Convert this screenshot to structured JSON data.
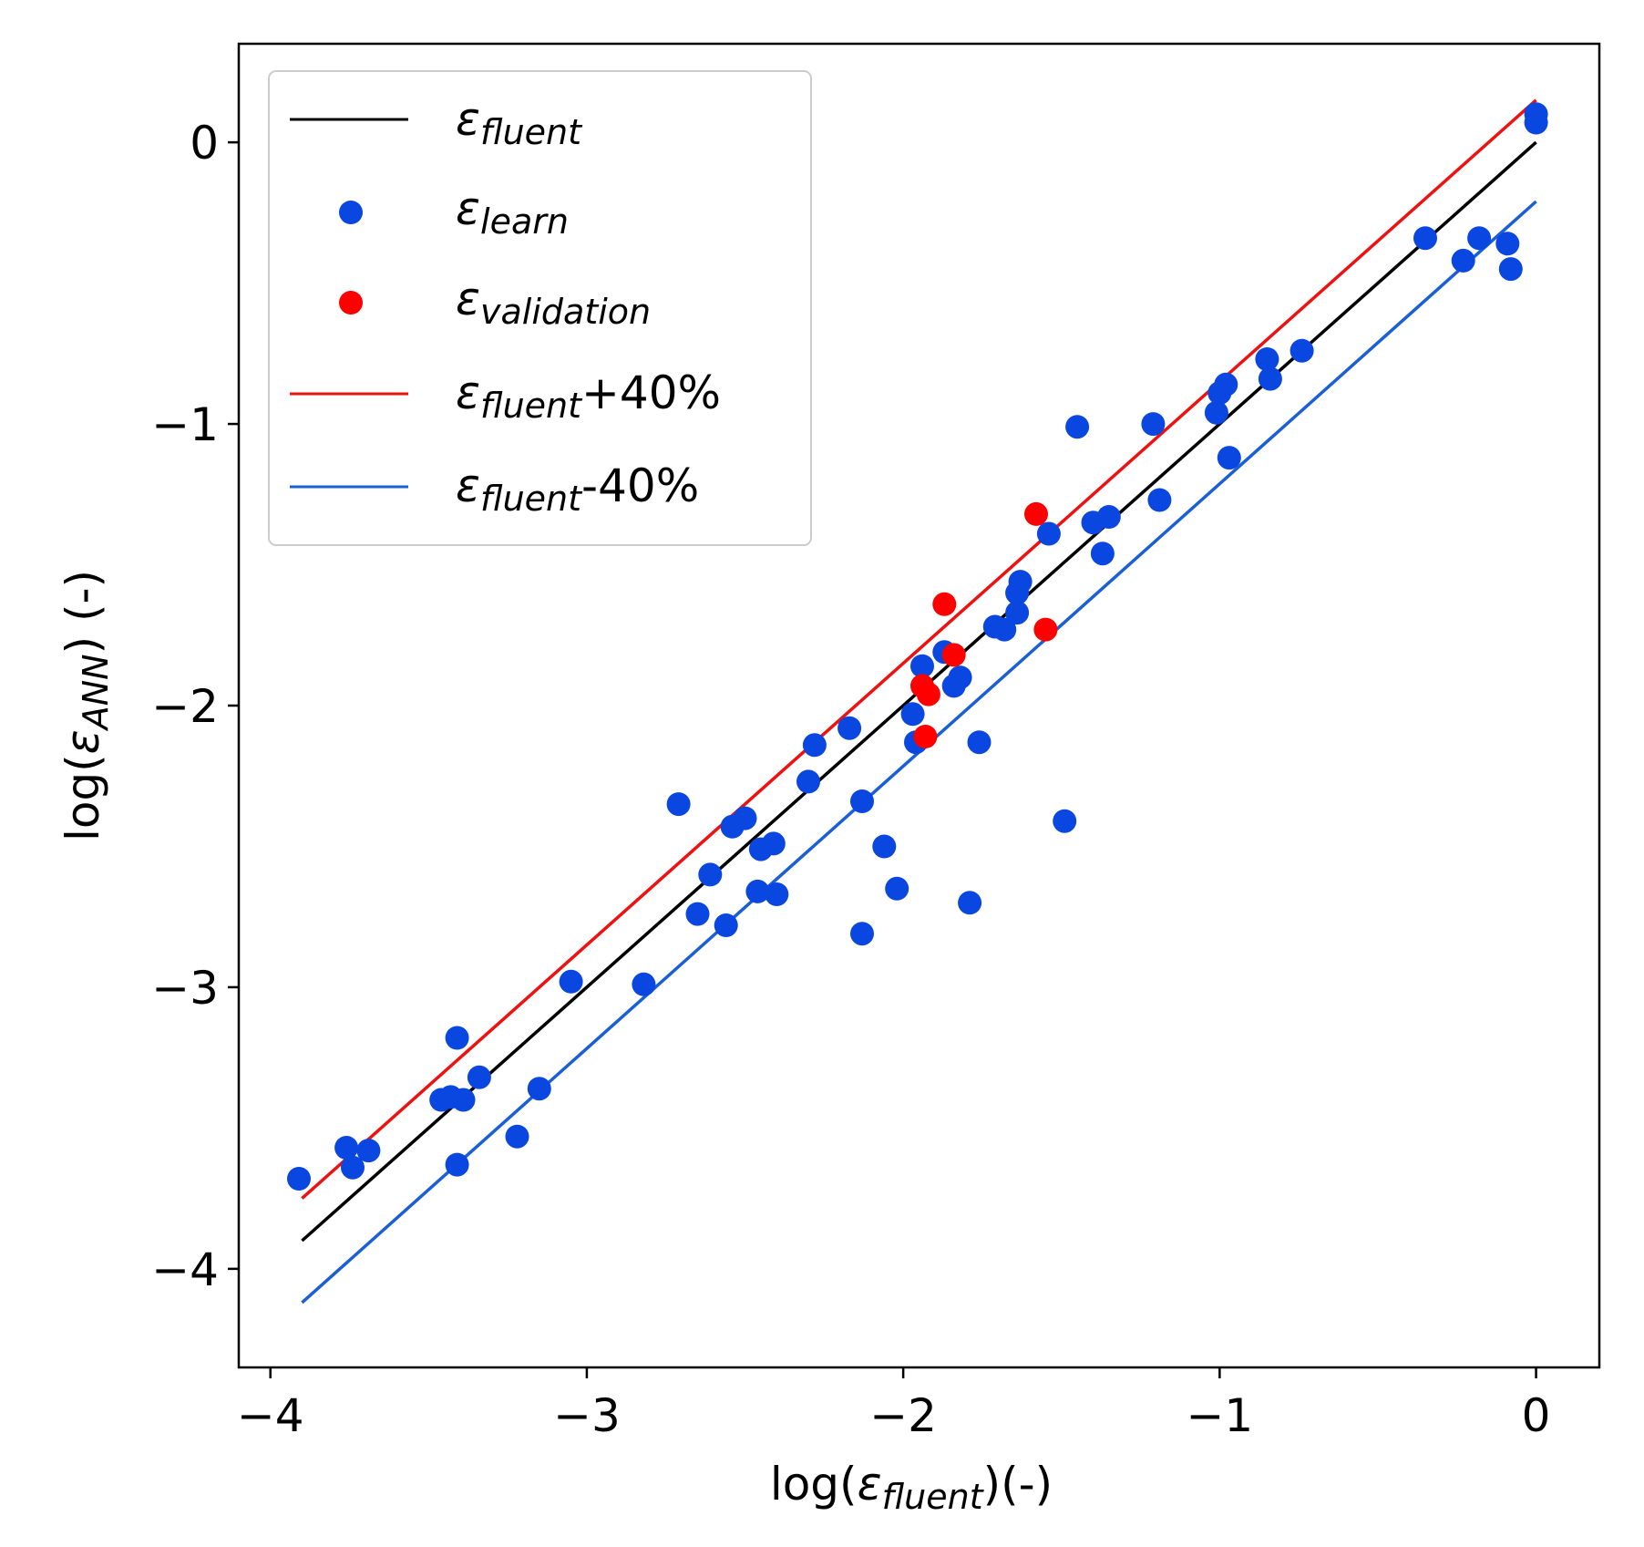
{
  "chart_data": {
    "type": "scatter",
    "title": "",
    "xlabel": "log(εfluent)(-)",
    "xlabel_parts": {
      "prefix": "log(",
      "symbol": "ε",
      "sub": "fluent",
      "suffix": ")(-)"
    },
    "ylabel": "log(εANN) (-)",
    "ylabel_parts": {
      "prefix": "log(",
      "symbol": "ε",
      "sub": "ANN",
      "suffix": ") (-)"
    },
    "xlim": [
      -4.1,
      0.2
    ],
    "ylim": [
      -4.35,
      0.35
    ],
    "xticks": [
      -4,
      -3,
      -2,
      -1,
      0
    ],
    "yticks": [
      -4,
      -3,
      -2,
      -1,
      0
    ],
    "tick_labels": {
      "x": [
        "−4",
        "−3",
        "−2",
        "−1",
        "0"
      ],
      "y": [
        "−4",
        "−3",
        "−2",
        "−1",
        "0"
      ]
    },
    "legend_position": "upper-left",
    "lines": [
      {
        "id": "fluent",
        "symbol": "ε",
        "sub": "fluent",
        "suffix": "",
        "color": "#000000",
        "x": [
          -3.9,
          0.0
        ],
        "y": [
          -3.9,
          0.0
        ]
      },
      {
        "id": "plus40",
        "symbol": "ε",
        "sub": "fluent",
        "suffix": "+40%",
        "color": "#ee1111",
        "x": [
          -3.9,
          0.0
        ],
        "y": [
          -3.75,
          0.15
        ]
      },
      {
        "id": "minus40",
        "symbol": "ε",
        "sub": "fluent",
        "suffix": "-40%",
        "color": "#1a5fd6",
        "x": [
          -3.9,
          0.0
        ],
        "y": [
          -4.12,
          -0.21
        ]
      }
    ],
    "series": [
      {
        "id": "learn",
        "symbol": "ε",
        "sub": "learn",
        "color": "#0a46e0",
        "points": [
          [
            -3.91,
            -3.68
          ],
          [
            -3.76,
            -3.57
          ],
          [
            -3.74,
            -3.64
          ],
          [
            -3.69,
            -3.58
          ],
          [
            -3.46,
            -3.4
          ],
          [
            -3.43,
            -3.39
          ],
          [
            -3.41,
            -3.18
          ],
          [
            -3.41,
            -3.63
          ],
          [
            -3.39,
            -3.4
          ],
          [
            -3.34,
            -3.32
          ],
          [
            -3.22,
            -3.53
          ],
          [
            -3.15,
            -3.36
          ],
          [
            -3.05,
            -2.98
          ],
          [
            -2.82,
            -2.99
          ],
          [
            -2.71,
            -2.35
          ],
          [
            -2.65,
            -2.74
          ],
          [
            -2.61,
            -2.6
          ],
          [
            -2.56,
            -2.78
          ],
          [
            -2.54,
            -2.43
          ],
          [
            -2.5,
            -2.4
          ],
          [
            -2.46,
            -2.66
          ],
          [
            -2.45,
            -2.51
          ],
          [
            -2.41,
            -2.49
          ],
          [
            -2.4,
            -2.67
          ],
          [
            -2.3,
            -2.27
          ],
          [
            -2.28,
            -2.14
          ],
          [
            -2.17,
            -2.08
          ],
          [
            -2.13,
            -2.34
          ],
          [
            -2.13,
            -2.81
          ],
          [
            -2.06,
            -2.5
          ],
          [
            -2.02,
            -2.65
          ],
          [
            -1.97,
            -2.03
          ],
          [
            -1.96,
            -2.13
          ],
          [
            -1.94,
            -1.86
          ],
          [
            -1.87,
            -1.81
          ],
          [
            -1.84,
            -1.93
          ],
          [
            -1.82,
            -1.9
          ],
          [
            -1.76,
            -2.13
          ],
          [
            -1.79,
            -2.7
          ],
          [
            -1.71,
            -1.72
          ],
          [
            -1.68,
            -1.73
          ],
          [
            -1.64,
            -1.6
          ],
          [
            -1.64,
            -1.67
          ],
          [
            -1.63,
            -1.56
          ],
          [
            -1.54,
            -1.39
          ],
          [
            -1.49,
            -2.41
          ],
          [
            -1.45,
            -1.01
          ],
          [
            -1.4,
            -1.35
          ],
          [
            -1.37,
            -1.46
          ],
          [
            -1.35,
            -1.33
          ],
          [
            -1.21,
            -1.0
          ],
          [
            -1.19,
            -1.27
          ],
          [
            -1.01,
            -0.96
          ],
          [
            -1.0,
            -0.89
          ],
          [
            -0.98,
            -0.86
          ],
          [
            -0.97,
            -1.12
          ],
          [
            -0.85,
            -0.77
          ],
          [
            -0.84,
            -0.84
          ],
          [
            -0.74,
            -0.74
          ],
          [
            -0.35,
            -0.34
          ],
          [
            -0.23,
            -0.42
          ],
          [
            -0.18,
            -0.34
          ],
          [
            -0.09,
            -0.36
          ],
          [
            -0.08,
            -0.45
          ],
          [
            0.0,
            0.07
          ],
          [
            0.0,
            0.1
          ]
        ]
      },
      {
        "id": "validation",
        "symbol": "ε",
        "sub": "validation",
        "color": "#ff0000",
        "points": [
          [
            -1.58,
            -1.32
          ],
          [
            -1.55,
            -1.73
          ],
          [
            -1.87,
            -1.64
          ],
          [
            -1.84,
            -1.82
          ],
          [
            -1.94,
            -1.93
          ],
          [
            -1.92,
            -1.96
          ],
          [
            -1.93,
            -2.11
          ]
        ]
      }
    ]
  }
}
